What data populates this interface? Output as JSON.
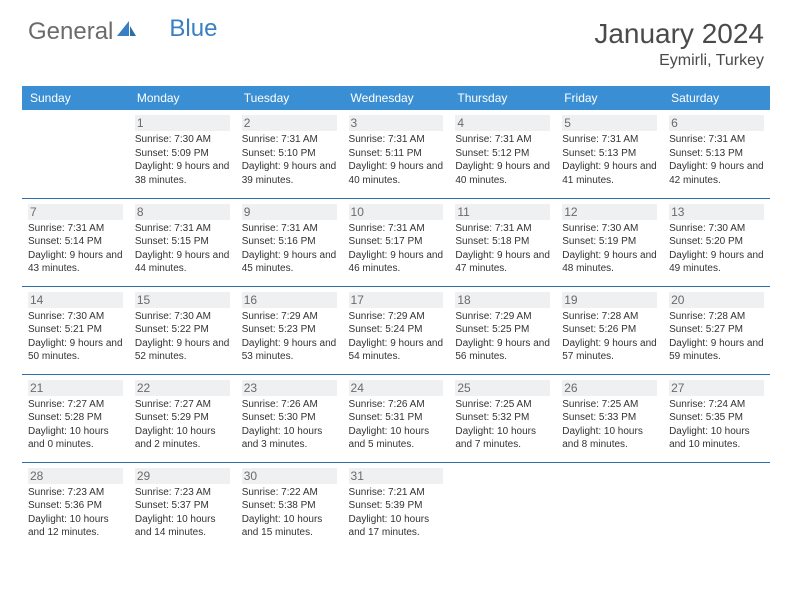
{
  "logo": {
    "part1": "General",
    "part2": "Blue"
  },
  "title": "January 2024",
  "location": "Eymirli, Turkey",
  "colors": {
    "header_bg": "#3a8fd4",
    "header_text": "#ffffff",
    "rule": "#2b6fa8",
    "daynum_bg": "#eef0f1",
    "daynum_text": "#6b6b6b",
    "body_text": "#333333",
    "logo_gray": "#6b6b6b",
    "logo_blue": "#3a7fc4"
  },
  "day_headers": [
    "Sunday",
    "Monday",
    "Tuesday",
    "Wednesday",
    "Thursday",
    "Friday",
    "Saturday"
  ],
  "weeks": [
    [
      null,
      {
        "n": "1",
        "sr": "Sunrise: 7:30 AM",
        "ss": "Sunset: 5:09 PM",
        "dl": "Daylight: 9 hours and 38 minutes."
      },
      {
        "n": "2",
        "sr": "Sunrise: 7:31 AM",
        "ss": "Sunset: 5:10 PM",
        "dl": "Daylight: 9 hours and 39 minutes."
      },
      {
        "n": "3",
        "sr": "Sunrise: 7:31 AM",
        "ss": "Sunset: 5:11 PM",
        "dl": "Daylight: 9 hours and 40 minutes."
      },
      {
        "n": "4",
        "sr": "Sunrise: 7:31 AM",
        "ss": "Sunset: 5:12 PM",
        "dl": "Daylight: 9 hours and 40 minutes."
      },
      {
        "n": "5",
        "sr": "Sunrise: 7:31 AM",
        "ss": "Sunset: 5:13 PM",
        "dl": "Daylight: 9 hours and 41 minutes."
      },
      {
        "n": "6",
        "sr": "Sunrise: 7:31 AM",
        "ss": "Sunset: 5:13 PM",
        "dl": "Daylight: 9 hours and 42 minutes."
      }
    ],
    [
      {
        "n": "7",
        "sr": "Sunrise: 7:31 AM",
        "ss": "Sunset: 5:14 PM",
        "dl": "Daylight: 9 hours and 43 minutes."
      },
      {
        "n": "8",
        "sr": "Sunrise: 7:31 AM",
        "ss": "Sunset: 5:15 PM",
        "dl": "Daylight: 9 hours and 44 minutes."
      },
      {
        "n": "9",
        "sr": "Sunrise: 7:31 AM",
        "ss": "Sunset: 5:16 PM",
        "dl": "Daylight: 9 hours and 45 minutes."
      },
      {
        "n": "10",
        "sr": "Sunrise: 7:31 AM",
        "ss": "Sunset: 5:17 PM",
        "dl": "Daylight: 9 hours and 46 minutes."
      },
      {
        "n": "11",
        "sr": "Sunrise: 7:31 AM",
        "ss": "Sunset: 5:18 PM",
        "dl": "Daylight: 9 hours and 47 minutes."
      },
      {
        "n": "12",
        "sr": "Sunrise: 7:30 AM",
        "ss": "Sunset: 5:19 PM",
        "dl": "Daylight: 9 hours and 48 minutes."
      },
      {
        "n": "13",
        "sr": "Sunrise: 7:30 AM",
        "ss": "Sunset: 5:20 PM",
        "dl": "Daylight: 9 hours and 49 minutes."
      }
    ],
    [
      {
        "n": "14",
        "sr": "Sunrise: 7:30 AM",
        "ss": "Sunset: 5:21 PM",
        "dl": "Daylight: 9 hours and 50 minutes."
      },
      {
        "n": "15",
        "sr": "Sunrise: 7:30 AM",
        "ss": "Sunset: 5:22 PM",
        "dl": "Daylight: 9 hours and 52 minutes."
      },
      {
        "n": "16",
        "sr": "Sunrise: 7:29 AM",
        "ss": "Sunset: 5:23 PM",
        "dl": "Daylight: 9 hours and 53 minutes."
      },
      {
        "n": "17",
        "sr": "Sunrise: 7:29 AM",
        "ss": "Sunset: 5:24 PM",
        "dl": "Daylight: 9 hours and 54 minutes."
      },
      {
        "n": "18",
        "sr": "Sunrise: 7:29 AM",
        "ss": "Sunset: 5:25 PM",
        "dl": "Daylight: 9 hours and 56 minutes."
      },
      {
        "n": "19",
        "sr": "Sunrise: 7:28 AM",
        "ss": "Sunset: 5:26 PM",
        "dl": "Daylight: 9 hours and 57 minutes."
      },
      {
        "n": "20",
        "sr": "Sunrise: 7:28 AM",
        "ss": "Sunset: 5:27 PM",
        "dl": "Daylight: 9 hours and 59 minutes."
      }
    ],
    [
      {
        "n": "21",
        "sr": "Sunrise: 7:27 AM",
        "ss": "Sunset: 5:28 PM",
        "dl": "Daylight: 10 hours and 0 minutes."
      },
      {
        "n": "22",
        "sr": "Sunrise: 7:27 AM",
        "ss": "Sunset: 5:29 PM",
        "dl": "Daylight: 10 hours and 2 minutes."
      },
      {
        "n": "23",
        "sr": "Sunrise: 7:26 AM",
        "ss": "Sunset: 5:30 PM",
        "dl": "Daylight: 10 hours and 3 minutes."
      },
      {
        "n": "24",
        "sr": "Sunrise: 7:26 AM",
        "ss": "Sunset: 5:31 PM",
        "dl": "Daylight: 10 hours and 5 minutes."
      },
      {
        "n": "25",
        "sr": "Sunrise: 7:25 AM",
        "ss": "Sunset: 5:32 PM",
        "dl": "Daylight: 10 hours and 7 minutes."
      },
      {
        "n": "26",
        "sr": "Sunrise: 7:25 AM",
        "ss": "Sunset: 5:33 PM",
        "dl": "Daylight: 10 hours and 8 minutes."
      },
      {
        "n": "27",
        "sr": "Sunrise: 7:24 AM",
        "ss": "Sunset: 5:35 PM",
        "dl": "Daylight: 10 hours and 10 minutes."
      }
    ],
    [
      {
        "n": "28",
        "sr": "Sunrise: 7:23 AM",
        "ss": "Sunset: 5:36 PM",
        "dl": "Daylight: 10 hours and 12 minutes."
      },
      {
        "n": "29",
        "sr": "Sunrise: 7:23 AM",
        "ss": "Sunset: 5:37 PM",
        "dl": "Daylight: 10 hours and 14 minutes."
      },
      {
        "n": "30",
        "sr": "Sunrise: 7:22 AM",
        "ss": "Sunset: 5:38 PM",
        "dl": "Daylight: 10 hours and 15 minutes."
      },
      {
        "n": "31",
        "sr": "Sunrise: 7:21 AM",
        "ss": "Sunset: 5:39 PM",
        "dl": "Daylight: 10 hours and 17 minutes."
      },
      null,
      null,
      null
    ]
  ]
}
